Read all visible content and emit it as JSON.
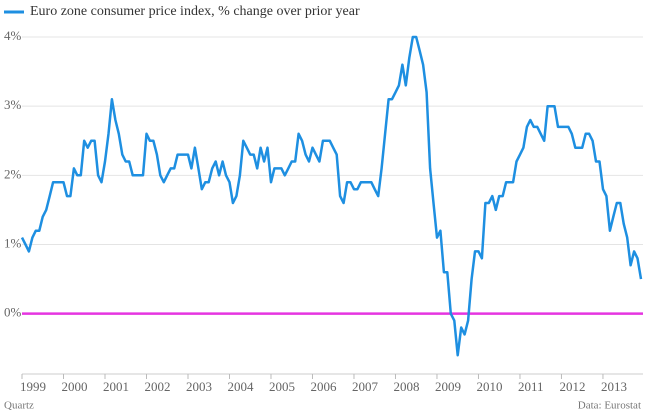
{
  "chart_data": {
    "type": "line",
    "legend": "Euro zone consumer price index, % change over prior year",
    "source_left": "Quartz",
    "source_right": "Data: Eurostat",
    "categories": [
      "1999",
      null,
      null,
      null,
      null,
      null,
      null,
      null,
      null,
      null,
      null,
      null,
      "2000",
      null,
      null,
      null,
      null,
      null,
      null,
      null,
      null,
      null,
      null,
      null,
      "2001",
      null,
      null,
      null,
      null,
      null,
      null,
      null,
      null,
      null,
      null,
      null,
      "2002",
      null,
      null,
      null,
      null,
      null,
      null,
      null,
      null,
      null,
      null,
      null,
      "2003",
      null,
      null,
      null,
      null,
      null,
      null,
      null,
      null,
      null,
      null,
      null,
      "2004",
      null,
      null,
      null,
      null,
      null,
      null,
      null,
      null,
      null,
      null,
      null,
      "2005",
      null,
      null,
      null,
      null,
      null,
      null,
      null,
      null,
      null,
      null,
      null,
      "2006",
      null,
      null,
      null,
      null,
      null,
      null,
      null,
      null,
      null,
      null,
      null,
      "2007",
      null,
      null,
      null,
      null,
      null,
      null,
      null,
      null,
      null,
      null,
      null,
      "2008",
      null,
      null,
      null,
      null,
      null,
      null,
      null,
      null,
      null,
      null,
      null,
      "2009",
      null,
      null,
      null,
      null,
      null,
      null,
      null,
      null,
      null,
      null,
      null,
      "2010",
      null,
      null,
      null,
      null,
      null,
      null,
      null,
      null,
      null,
      null,
      null,
      "2011",
      null,
      null,
      null,
      null,
      null,
      null,
      null,
      null,
      null,
      null,
      null,
      "2012",
      null,
      null,
      null,
      null,
      null,
      null,
      null,
      null,
      null,
      null,
      null,
      "2013",
      null,
      null,
      null,
      null,
      null,
      null,
      null,
      null,
      null,
      null,
      null
    ],
    "series": [
      {
        "name": "Euro zone consumer price index, % change over prior year",
        "color": "#1e8fe1",
        "values": [
          1.1,
          1.0,
          0.9,
          1.1,
          1.2,
          1.2,
          1.4,
          1.5,
          1.7,
          1.9,
          1.9,
          1.9,
          1.9,
          1.7,
          1.7,
          2.1,
          2.0,
          2.0,
          2.5,
          2.4,
          2.5,
          2.5,
          2.0,
          1.9,
          2.2,
          2.6,
          3.1,
          2.8,
          2.6,
          2.3,
          2.2,
          2.2,
          2.0,
          2.0,
          2.0,
          2.0,
          2.6,
          2.5,
          2.5,
          2.3,
          2.0,
          1.9,
          2.0,
          2.1,
          2.1,
          2.3,
          2.3,
          2.3,
          2.3,
          2.1,
          2.4,
          2.1,
          1.8,
          1.9,
          1.9,
          2.1,
          2.2,
          2.0,
          2.2,
          2.0,
          1.9,
          1.6,
          1.7,
          2.0,
          2.5,
          2.4,
          2.3,
          2.3,
          2.1,
          2.4,
          2.2,
          2.4,
          1.9,
          2.1,
          2.1,
          2.1,
          2.0,
          2.1,
          2.2,
          2.2,
          2.6,
          2.5,
          2.3,
          2.2,
          2.4,
          2.3,
          2.2,
          2.5,
          2.5,
          2.5,
          2.4,
          2.3,
          1.7,
          1.6,
          1.9,
          1.9,
          1.8,
          1.8,
          1.9,
          1.9,
          1.9,
          1.9,
          1.8,
          1.7,
          2.1,
          2.6,
          3.1,
          3.1,
          3.2,
          3.3,
          3.6,
          3.3,
          3.7,
          4.0,
          4.0,
          3.8,
          3.6,
          3.2,
          2.1,
          1.6,
          1.1,
          1.2,
          0.6,
          0.6,
          0.0,
          -0.1,
          -0.6,
          -0.2,
          -0.3,
          -0.1,
          0.5,
          0.9,
          0.9,
          0.8,
          1.6,
          1.6,
          1.7,
          1.5,
          1.7,
          1.7,
          1.9,
          1.9,
          1.9,
          2.2,
          2.3,
          2.4,
          2.7,
          2.8,
          2.7,
          2.7,
          2.6,
          2.5,
          3.0,
          3.0,
          3.0,
          2.7,
          2.7,
          2.7,
          2.7,
          2.6,
          2.4,
          2.4,
          2.4,
          2.6,
          2.6,
          2.5,
          2.2,
          2.2,
          1.8,
          1.7,
          1.2,
          1.4,
          1.6,
          1.6,
          1.3,
          1.1,
          0.7,
          0.9,
          0.8,
          0.5
        ]
      }
    ],
    "ylim": [
      -0.8,
      4
    ],
    "yticks": [
      {
        "value": 0,
        "label": "0%"
      },
      {
        "value": 1,
        "label": "1%"
      },
      {
        "value": 2,
        "label": "2%"
      },
      {
        "value": 3,
        "label": "3%"
      },
      {
        "value": 4,
        "label": "4%"
      }
    ],
    "grid": true,
    "grid_color": "#e4e4e4",
    "baseline_color": "#e535e0"
  }
}
